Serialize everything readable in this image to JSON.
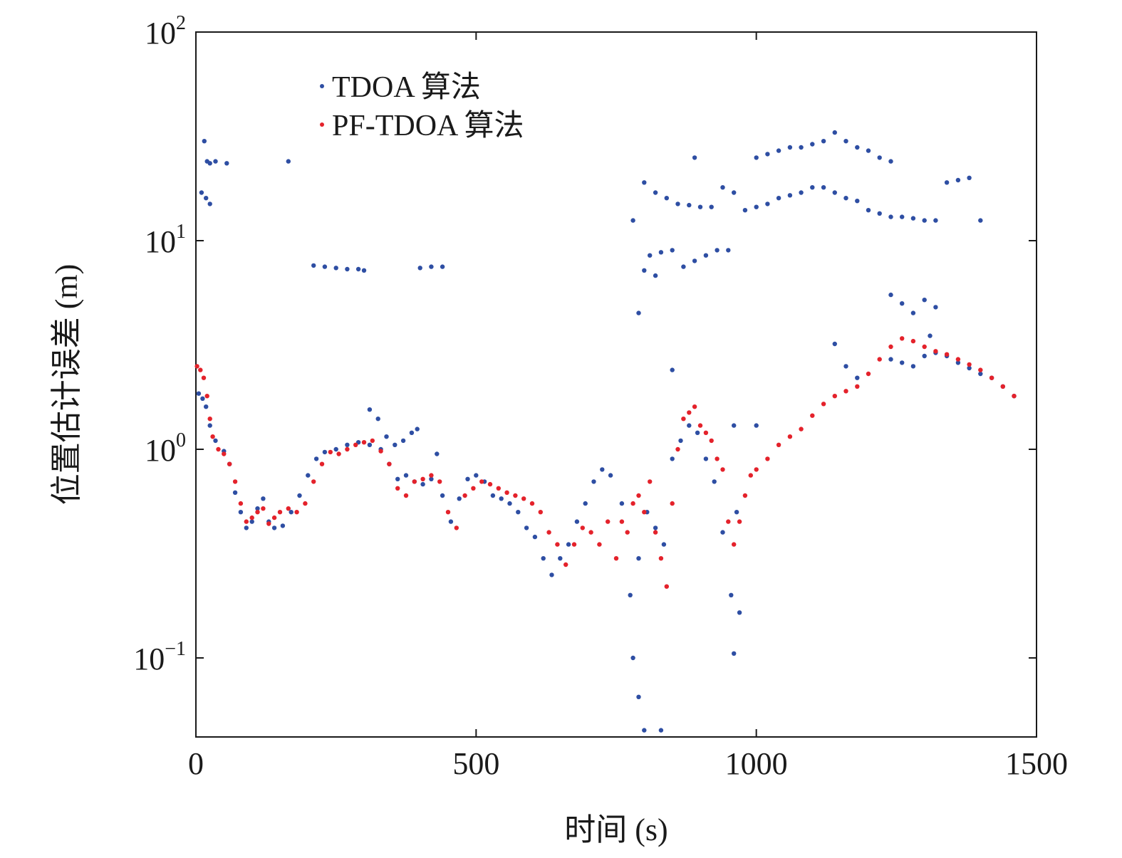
{
  "chart_data": {
    "type": "scatter",
    "xlabel": "时间 (s)",
    "ylabel": "位置估计误差 (m)",
    "xlim": [
      0,
      1500
    ],
    "ylim": [
      0.04,
      100
    ],
    "yscale": "log",
    "grid": false,
    "legend_placement": "top-left",
    "x_ticks": [
      {
        "label": "0",
        "value": 0
      },
      {
        "label": "500",
        "value": 500
      },
      {
        "label": "1000",
        "value": 1000
      },
      {
        "label": "1500",
        "value": 1500
      }
    ],
    "y_ticks": [
      {
        "base": "10",
        "exp": "−1",
        "value": 0.1
      },
      {
        "base": "10",
        "exp": "0",
        "value": 1
      },
      {
        "base": "10",
        "exp": "1",
        "value": 10
      },
      {
        "base": "10",
        "exp": "2",
        "value": 100
      }
    ],
    "series": [
      {
        "name": "TDOA 算法",
        "color": "#2e4ea3",
        "points": [
          [
            5,
            1.85
          ],
          [
            12,
            1.75
          ],
          [
            18,
            1.6
          ],
          [
            25,
            1.3
          ],
          [
            35,
            1.1
          ],
          [
            50,
            0.98
          ],
          [
            60,
            0.85
          ],
          [
            70,
            0.62
          ],
          [
            80,
            0.5
          ],
          [
            90,
            0.42
          ],
          [
            100,
            0.45
          ],
          [
            110,
            0.52
          ],
          [
            120,
            0.58
          ],
          [
            130,
            0.45
          ],
          [
            140,
            0.42
          ],
          [
            155,
            0.43
          ],
          [
            170,
            0.5
          ],
          [
            185,
            0.6
          ],
          [
            200,
            0.75
          ],
          [
            215,
            0.9
          ],
          [
            230,
            0.97
          ],
          [
            250,
            1.0
          ],
          [
            270,
            1.05
          ],
          [
            290,
            1.08
          ],
          [
            310,
            1.05
          ],
          [
            330,
            1.0
          ],
          [
            345,
            0.85
          ],
          [
            360,
            0.72
          ],
          [
            375,
            0.75
          ],
          [
            390,
            0.7
          ],
          [
            405,
            0.68
          ],
          [
            420,
            0.72
          ],
          [
            440,
            0.6
          ],
          [
            455,
            0.45
          ],
          [
            470,
            0.58
          ],
          [
            485,
            0.72
          ],
          [
            500,
            0.75
          ],
          [
            515,
            0.7
          ],
          [
            530,
            0.6
          ],
          [
            545,
            0.58
          ],
          [
            560,
            0.55
          ],
          [
            575,
            0.5
          ],
          [
            590,
            0.42
          ],
          [
            605,
            0.38
          ],
          [
            620,
            0.3
          ],
          [
            635,
            0.25
          ],
          [
            650,
            0.3
          ],
          [
            665,
            0.35
          ],
          [
            680,
            0.45
          ],
          [
            695,
            0.55
          ],
          [
            710,
            0.7
          ],
          [
            725,
            0.8
          ],
          [
            740,
            0.75
          ],
          [
            760,
            0.55
          ],
          [
            775,
            0.2
          ],
          [
            790,
            0.3
          ],
          [
            805,
            0.5
          ],
          [
            820,
            0.42
          ],
          [
            835,
            0.35
          ],
          [
            850,
            0.9
          ],
          [
            865,
            1.1
          ],
          [
            880,
            1.3
          ],
          [
            895,
            1.2
          ],
          [
            910,
            0.9
          ],
          [
            925,
            0.7
          ],
          [
            940,
            0.4
          ],
          [
            955,
            0.2
          ],
          [
            965,
            0.5
          ],
          [
            15,
            30
          ],
          [
            20,
            24
          ],
          [
            25,
            23.5
          ],
          [
            35,
            24
          ],
          [
            55,
            23.5
          ],
          [
            165,
            24
          ],
          [
            10,
            17
          ],
          [
            18,
            16
          ],
          [
            25,
            15
          ],
          [
            210,
            7.6
          ],
          [
            230,
            7.5
          ],
          [
            250,
            7.4
          ],
          [
            270,
            7.3
          ],
          [
            290,
            7.3
          ],
          [
            300,
            7.2
          ],
          [
            400,
            7.4
          ],
          [
            420,
            7.5
          ],
          [
            440,
            7.5
          ],
          [
            310,
            1.55
          ],
          [
            325,
            1.4
          ],
          [
            340,
            1.15
          ],
          [
            355,
            1.05
          ],
          [
            370,
            1.1
          ],
          [
            385,
            1.2
          ],
          [
            395,
            1.25
          ],
          [
            430,
            0.95
          ],
          [
            780,
            12.5
          ],
          [
            800,
            19
          ],
          [
            820,
            17
          ],
          [
            840,
            16
          ],
          [
            860,
            15
          ],
          [
            880,
            14.8
          ],
          [
            900,
            14.5
          ],
          [
            920,
            14.5
          ],
          [
            940,
            18
          ],
          [
            960,
            17
          ],
          [
            980,
            14
          ],
          [
            1000,
            14.5
          ],
          [
            1020,
            15
          ],
          [
            1040,
            16
          ],
          [
            1060,
            16.5
          ],
          [
            1080,
            17
          ],
          [
            1100,
            18
          ],
          [
            1120,
            18
          ],
          [
            1140,
            17
          ],
          [
            1160,
            16
          ],
          [
            1180,
            15.5
          ],
          [
            1200,
            14
          ],
          [
            1220,
            13.5
          ],
          [
            1240,
            13
          ],
          [
            1260,
            13
          ],
          [
            1280,
            12.8
          ],
          [
            1300,
            12.5
          ],
          [
            1320,
            12.5
          ],
          [
            1340,
            19
          ],
          [
            1360,
            19.5
          ],
          [
            1380,
            20
          ],
          [
            1400,
            12.5
          ],
          [
            1000,
            25
          ],
          [
            1020,
            26
          ],
          [
            1040,
            27
          ],
          [
            1060,
            28
          ],
          [
            1080,
            28
          ],
          [
            1100,
            29
          ],
          [
            1120,
            30
          ],
          [
            1140,
            33
          ],
          [
            1160,
            30
          ],
          [
            1180,
            28
          ],
          [
            1200,
            27
          ],
          [
            1220,
            25
          ],
          [
            1240,
            24
          ],
          [
            890,
            25
          ],
          [
            810,
            8.5
          ],
          [
            830,
            8.8
          ],
          [
            850,
            9
          ],
          [
            870,
            7.5
          ],
          [
            890,
            8
          ],
          [
            910,
            8.5
          ],
          [
            930,
            9
          ],
          [
            950,
            9
          ],
          [
            800,
            7.2
          ],
          [
            820,
            6.8
          ],
          [
            1240,
            5.5
          ],
          [
            1260,
            5
          ],
          [
            1280,
            4.5
          ],
          [
            1300,
            5.2
          ],
          [
            1320,
            4.8
          ],
          [
            1310,
            3.5
          ],
          [
            1140,
            3.2
          ],
          [
            1160,
            2.5
          ],
          [
            1180,
            2.2
          ],
          [
            1240,
            2.7
          ],
          [
            1260,
            2.6
          ],
          [
            1280,
            2.5
          ],
          [
            1300,
            2.8
          ],
          [
            1320,
            2.9
          ],
          [
            1340,
            2.8
          ],
          [
            1360,
            2.6
          ],
          [
            1380,
            2.45
          ],
          [
            1400,
            2.3
          ],
          [
            1420,
            2.2
          ],
          [
            1440,
            2.0
          ],
          [
            1460,
            1.8
          ],
          [
            790,
            4.5
          ],
          [
            850,
            2.4
          ],
          [
            780,
            0.1
          ],
          [
            790,
            0.065
          ],
          [
            800,
            0.045
          ],
          [
            830,
            0.045
          ],
          [
            960,
            0.105
          ],
          [
            970,
            0.165
          ],
          [
            960,
            1.3
          ],
          [
            1000,
            1.3
          ]
        ]
      },
      {
        "name": "PF-TDOA 算法",
        "color": "#e4222b",
        "points": [
          [
            2,
            2.5
          ],
          [
            8,
            2.4
          ],
          [
            14,
            2.2
          ],
          [
            20,
            1.8
          ],
          [
            25,
            1.4
          ],
          [
            30,
            1.15
          ],
          [
            40,
            1.0
          ],
          [
            50,
            0.95
          ],
          [
            60,
            0.85
          ],
          [
            70,
            0.7
          ],
          [
            80,
            0.55
          ],
          [
            90,
            0.45
          ],
          [
            100,
            0.47
          ],
          [
            110,
            0.5
          ],
          [
            120,
            0.52
          ],
          [
            130,
            0.44
          ],
          [
            140,
            0.47
          ],
          [
            150,
            0.5
          ],
          [
            165,
            0.52
          ],
          [
            180,
            0.5
          ],
          [
            195,
            0.55
          ],
          [
            210,
            0.7
          ],
          [
            225,
            0.85
          ],
          [
            240,
            0.97
          ],
          [
            255,
            0.95
          ],
          [
            270,
            1.0
          ],
          [
            285,
            1.05
          ],
          [
            300,
            1.08
          ],
          [
            315,
            1.1
          ],
          [
            330,
            0.98
          ],
          [
            345,
            0.85
          ],
          [
            360,
            0.65
          ],
          [
            375,
            0.6
          ],
          [
            390,
            0.7
          ],
          [
            405,
            0.72
          ],
          [
            420,
            0.75
          ],
          [
            435,
            0.7
          ],
          [
            450,
            0.5
          ],
          [
            465,
            0.42
          ],
          [
            480,
            0.6
          ],
          [
            495,
            0.65
          ],
          [
            510,
            0.7
          ],
          [
            525,
            0.68
          ],
          [
            540,
            0.65
          ],
          [
            555,
            0.62
          ],
          [
            570,
            0.6
          ],
          [
            585,
            0.58
          ],
          [
            600,
            0.55
          ],
          [
            615,
            0.5
          ],
          [
            630,
            0.4
          ],
          [
            645,
            0.35
          ],
          [
            660,
            0.28
          ],
          [
            675,
            0.35
          ],
          [
            690,
            0.42
          ],
          [
            705,
            0.4
          ],
          [
            720,
            0.35
          ],
          [
            735,
            0.45
          ],
          [
            750,
            0.3
          ],
          [
            760,
            0.45
          ],
          [
            770,
            0.4
          ],
          [
            780,
            0.55
          ],
          [
            790,
            0.6
          ],
          [
            800,
            0.5
          ],
          [
            810,
            0.7
          ],
          [
            820,
            0.4
          ],
          [
            830,
            0.3
          ],
          [
            840,
            0.22
          ],
          [
            850,
            0.55
          ],
          [
            860,
            1.0
          ],
          [
            870,
            1.4
          ],
          [
            880,
            1.5
          ],
          [
            890,
            1.6
          ],
          [
            900,
            1.3
          ],
          [
            910,
            1.2
          ],
          [
            920,
            1.1
          ],
          [
            930,
            0.9
          ],
          [
            940,
            0.8
          ],
          [
            950,
            0.45
          ],
          [
            960,
            0.35
          ],
          [
            970,
            0.45
          ],
          [
            980,
            0.6
          ],
          [
            990,
            0.75
          ],
          [
            1000,
            0.8
          ],
          [
            1020,
            0.9
          ],
          [
            1040,
            1.05
          ],
          [
            1060,
            1.15
          ],
          [
            1080,
            1.25
          ],
          [
            1100,
            1.45
          ],
          [
            1120,
            1.65
          ],
          [
            1140,
            1.8
          ],
          [
            1160,
            1.9
          ],
          [
            1180,
            2.0
          ],
          [
            1200,
            2.3
          ],
          [
            1220,
            2.7
          ],
          [
            1240,
            3.1
          ],
          [
            1260,
            3.4
          ],
          [
            1280,
            3.3
          ],
          [
            1300,
            3.1
          ],
          [
            1320,
            2.95
          ],
          [
            1340,
            2.85
          ],
          [
            1360,
            2.7
          ],
          [
            1380,
            2.55
          ],
          [
            1400,
            2.4
          ],
          [
            1420,
            2.2
          ],
          [
            1440,
            2.0
          ],
          [
            1460,
            1.8
          ]
        ]
      }
    ]
  }
}
